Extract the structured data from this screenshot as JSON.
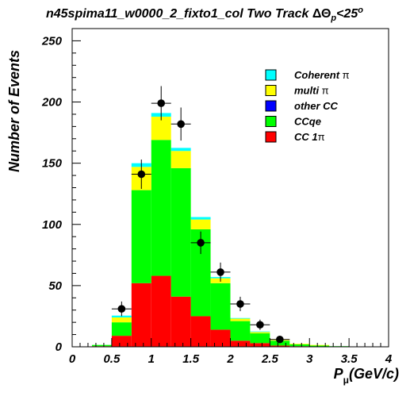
{
  "chart_data": {
    "type": "bar",
    "stacked": true,
    "histogram": true,
    "title_main": "n45spima11_w0000_2_fixto1_col Two Track",
    "title_math": {
      "delta": "Δ",
      "theta": "Θ",
      "sub": "p",
      "rel": "<25",
      "sup": "o"
    },
    "xlabel": "P",
    "xlabel_sub": "μ",
    "xlabel_unit": "(GeV/c)",
    "ylabel": "Number of Events",
    "xlim": [
      0,
      4
    ],
    "ylim": [
      0,
      260
    ],
    "x_ticks": [
      0,
      0.5,
      1,
      1.5,
      2,
      2.5,
      3,
      3.5,
      4
    ],
    "x_tick_labels": [
      "0",
      "0.5",
      "1",
      "1.5",
      "2",
      "2.5",
      "3",
      "3.5",
      "4"
    ],
    "y_ticks": [
      0,
      50,
      100,
      150,
      200,
      250
    ],
    "y_tick_labels": [
      "0",
      "50",
      "100",
      "150",
      "200",
      "250"
    ],
    "bin_edges": [
      0.0,
      0.25,
      0.5,
      0.75,
      1.0,
      1.25,
      1.5,
      1.75,
      2.0,
      2.25,
      2.5,
      2.75,
      3.0,
      3.25,
      3.5,
      3.75,
      4.0
    ],
    "legend_position": "top-right",
    "series": [
      {
        "name": "CC 1π",
        "label_text": "CC 1",
        "label_sym": "π",
        "color": "#ff0000",
        "values": [
          0,
          0.5,
          9,
          52,
          58,
          41,
          25,
          14,
          5,
          3,
          1,
          0.5,
          0,
          0,
          0,
          0
        ]
      },
      {
        "name": "CCqe",
        "label_text": "CCqe",
        "label_sym": "",
        "color": "#00ff00",
        "values": [
          0,
          1,
          11,
          76,
          111,
          105,
          71,
          38,
          16,
          8,
          4,
          1.5,
          1,
          0.5,
          0,
          0
        ]
      },
      {
        "name": "other CC",
        "label_text": "other CC",
        "label_sym": "",
        "color": "#0000ff",
        "values": [
          0,
          0,
          0,
          0,
          0,
          0,
          0,
          0,
          0,
          0,
          0,
          0,
          0,
          0,
          0,
          0
        ]
      },
      {
        "name": "multi π",
        "label_text": "multi ",
        "label_sym": "π",
        "color": "#ffff00",
        "values": [
          0,
          0,
          4,
          19,
          19,
          14,
          8,
          4,
          2,
          1,
          0.5,
          0.5,
          0.5,
          0,
          0,
          0
        ]
      },
      {
        "name": "Coherent π",
        "label_text": "Coherent ",
        "label_sym": "π",
        "color": "#00ffff",
        "values": [
          0,
          0,
          1.5,
          3,
          3,
          2.5,
          2,
          1,
          0.5,
          0.5,
          0,
          0,
          0,
          0,
          0,
          0
        ]
      }
    ],
    "legend_order": [
      4,
      3,
      2,
      1,
      0
    ],
    "data_points": [
      {
        "x": 0.625,
        "y": 31,
        "err": 6
      },
      {
        "x": 0.875,
        "y": 141,
        "err": 12
      },
      {
        "x": 1.125,
        "y": 199,
        "err": 14
      },
      {
        "x": 1.375,
        "y": 182,
        "err": 13.5
      },
      {
        "x": 1.625,
        "y": 85,
        "err": 9.2
      },
      {
        "x": 1.875,
        "y": 61,
        "err": 7.8
      },
      {
        "x": 2.125,
        "y": 35,
        "err": 5.9
      },
      {
        "x": 2.375,
        "y": 18,
        "err": 4.2
      },
      {
        "x": 2.625,
        "y": 6,
        "err": 2.4
      }
    ]
  }
}
